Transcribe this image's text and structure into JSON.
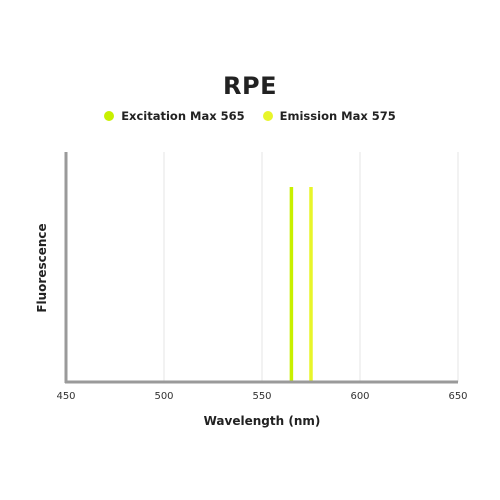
{
  "chart_data": {
    "type": "line",
    "title": "RPE",
    "xlabel": "Wavelength (nm)",
    "ylabel": "Fluorescence",
    "xlim": [
      450,
      650
    ],
    "x_ticks": [
      "450",
      "500",
      "550",
      "600",
      "650"
    ],
    "grid": true,
    "legend_position": "top-center",
    "series": [
      {
        "name": "Excitation Max 565",
        "x": 565,
        "value": 1.0,
        "color": "#c8f000"
      },
      {
        "name": "Emission Max 575",
        "x": 575,
        "value": 1.0,
        "color": "#e8f52a"
      }
    ]
  },
  "colors": {
    "axis": "#9a9a9a",
    "grid": "#e6e6e6"
  }
}
